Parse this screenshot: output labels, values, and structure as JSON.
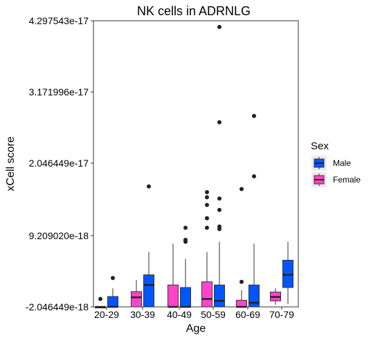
{
  "chart_data": {
    "type": "boxplot",
    "title": "NK cells in ADRNLG",
    "xlabel": "Age",
    "ylabel": "xCell score",
    "yticks": [
      "-2.046449e-18",
      "9.209020e-18",
      "2.046449e-17",
      "3.171996e-17",
      "4.297543e-17"
    ],
    "ylim": [
      -2.046449e-18,
      4.297543e-17
    ],
    "grid": false,
    "legend": {
      "title": "Sex",
      "position": "right"
    },
    "categories": [
      "20-29",
      "30-39",
      "40-49",
      "50-59",
      "60-69",
      "70-79"
    ],
    "series": [
      {
        "name": "Female",
        "color": "#FF44CC",
        "boxes": [
          {
            "category": "20-29",
            "min": -2.046449e-18,
            "q1": -2.046449e-18,
            "median": -2.046449e-18,
            "q3": -2.046449e-18,
            "max": -2.046449e-18,
            "outliers": [
              -8e-19
            ]
          },
          {
            "category": "30-39",
            "min": -2.046449e-18,
            "q1": -2.046449e-18,
            "median": -5.4e-19,
            "q3": 3.6e-19,
            "max": 2.2e-18,
            "outliers": []
          },
          {
            "category": "40-49",
            "min": -2.046449e-18,
            "q1": -2.046449e-18,
            "median": -2.046449e-18,
            "q3": 1.4e-18,
            "max": 7.9e-18,
            "outliers": []
          },
          {
            "category": "50-59",
            "min": -2.046449e-18,
            "q1": -2.046449e-18,
            "median": -8e-19,
            "q3": 1.9e-18,
            "max": 6.6e-18,
            "outliers": [
              1.6e-17,
              1.52e-17,
              1.4e-17,
              1.19e-17,
              1.04e-17
            ]
          },
          {
            "category": "60-69",
            "min": -2.046449e-18,
            "q1": -2.046449e-18,
            "median": -2.046449e-18,
            "q3": -1e-18,
            "max": 6e-19,
            "outliers": [
              1.9e-18,
              1.65e-17
            ]
          },
          {
            "category": "70-79",
            "min": -1.7e-18,
            "q1": -1.1e-18,
            "median": -4.8e-19,
            "q3": 2.9e-19,
            "max": 8.8e-19,
            "outliers": []
          }
        ]
      },
      {
        "name": "Male",
        "color": "#0055FF",
        "boxes": [
          {
            "category": "20-29",
            "min": -2.046449e-18,
            "q1": -2.046449e-18,
            "median": -2.046449e-18,
            "q3": -4.2e-19,
            "max": 8.8e-19,
            "outliers": [
              2.5e-18
            ]
          },
          {
            "category": "30-39",
            "min": -2.046449e-18,
            "q1": -2.046449e-18,
            "median": 1.4e-18,
            "q3": 3e-18,
            "max": 6.6e-18,
            "outliers": [
              1.69e-17
            ]
          },
          {
            "category": "40-49",
            "min": -2.046449e-18,
            "q1": -2.046449e-18,
            "median": -2.046449e-18,
            "q3": 1e-18,
            "max": 5.5e-18,
            "outliers": [
              1.04e-17,
              8.5e-18,
              8.2e-18
            ]
          },
          {
            "category": "50-59",
            "min": -2.046449e-18,
            "q1": -2.046449e-18,
            "median": -1.1e-18,
            "q3": 1.4e-18,
            "max": 8.2e-18,
            "outliers": [
              4.2e-17,
              2.7e-17,
              1.5e-17,
              1.32e-17,
              1.06e-17,
              1.02e-17
            ]
          },
          {
            "category": "60-69",
            "min": -2.046449e-18,
            "q1": -2.046449e-18,
            "median": -1.4e-18,
            "q3": 1.4e-18,
            "max": 7.9e-18,
            "outliers": [
              2.8e-17,
              1.85e-17
            ]
          },
          {
            "category": "70-79",
            "min": -1.6e-18,
            "q1": 1e-18,
            "median": 3e-18,
            "q3": 5.3e-18,
            "max": 8.2e-18,
            "outliers": []
          }
        ]
      }
    ]
  }
}
